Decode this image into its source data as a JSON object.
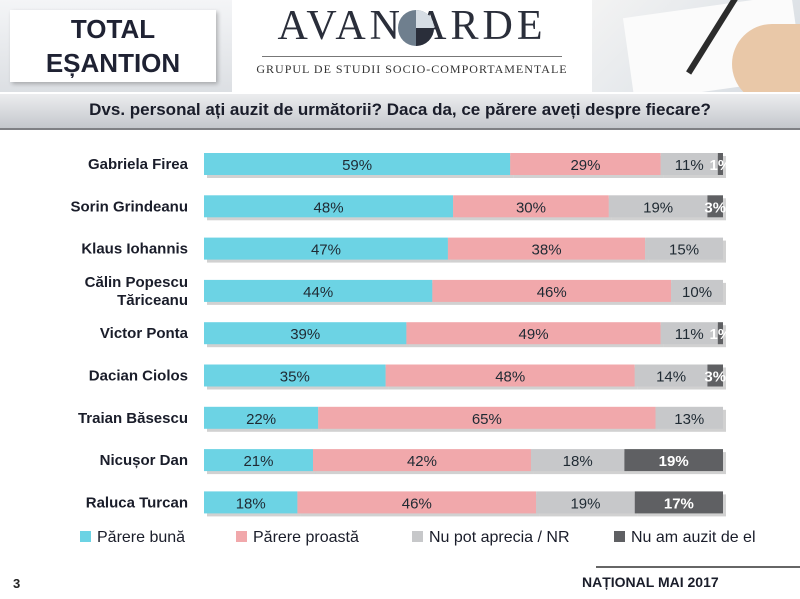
{
  "header": {
    "total_line1": "TOTAL",
    "total_line2": "EȘANTION",
    "logo_name": "AVAN  ARDE",
    "logo_subtitle": "GRUPUL DE STUDII SOCIO-COMPORTAMENTALE"
  },
  "question": "Dvs. personal ați auzit de următorii? Daca da, ce părere aveți despre fiecare?",
  "footer": {
    "page_number": "3",
    "label": "NAȚIONAL MAI 2017"
  },
  "chart_data": {
    "type": "bar",
    "orientation": "horizontal",
    "stacked": true,
    "percent_suffix": "%",
    "categories": [
      [
        "Gabriela Firea"
      ],
      [
        "Sorin Grindeanu"
      ],
      [
        "Klaus Iohannis"
      ],
      [
        "Călin Popescu",
        "Tăriceanu"
      ],
      [
        "Victor Ponta"
      ],
      [
        "Dacian Ciolos"
      ],
      [
        "Traian Băsescu"
      ],
      [
        "Nicușor Dan"
      ],
      [
        "Raluca Turcan"
      ]
    ],
    "series": [
      {
        "name": "Părere bună",
        "color": "#6cd3e4",
        "label_color": "#1f2a33",
        "values": [
          59,
          48,
          47,
          44,
          39,
          35,
          22,
          21,
          18
        ]
      },
      {
        "name": "Părere proastă",
        "color": "#f1a8ab",
        "label_color": "#1f2a33",
        "values": [
          29,
          30,
          38,
          46,
          49,
          48,
          65,
          42,
          46
        ]
      },
      {
        "name": "Nu pot aprecia / NR",
        "color": "#c7c8ca",
        "label_color": "#1f2a33",
        "values": [
          11,
          19,
          15,
          10,
          11,
          14,
          13,
          18,
          19
        ]
      },
      {
        "name": "Nu am auzit de el",
        "color": "#5f6063",
        "label_color": "#ffffff",
        "values": [
          1,
          3,
          0,
          0,
          1,
          3,
          0,
          19,
          17
        ]
      }
    ],
    "xlim": [
      0,
      100
    ],
    "legend_position": "bottom",
    "grid": false
  }
}
